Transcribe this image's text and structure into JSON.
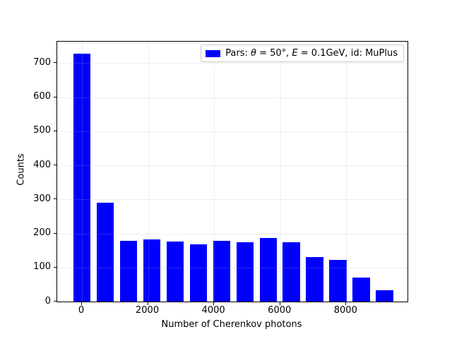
{
  "chart_data": {
    "type": "bar",
    "title": "",
    "xlabel": "Number of Cherenkov photons",
    "ylabel": "Counts",
    "bin_centers": [
      0,
      705,
      1410,
      2115,
      2820,
      3525,
      4230,
      4935,
      5640,
      6345,
      7050,
      7755,
      8460,
      9165
    ],
    "values": [
      727,
      291,
      179,
      182,
      177,
      167,
      179,
      174,
      187,
      175,
      130,
      122,
      71,
      34
    ],
    "bar_width_units": 529,
    "xlim": [
      -748,
      9853
    ],
    "ylim": [
      0,
      763
    ],
    "xticks": [
      0,
      2000,
      4000,
      6000,
      8000
    ],
    "yticks": [
      0,
      100,
      200,
      300,
      400,
      500,
      600,
      700
    ],
    "grid": true,
    "legend_position": "upper right",
    "colors": {
      "bar": "#0000ff",
      "grid": "rgba(176,176,176,0.22)",
      "spine": "#000000",
      "text": "#000000",
      "legend_border": "#c9c9c9"
    },
    "legend": {
      "swatch_color": "#0000ff",
      "label_plain": "Pars: θ = 50°, E = 0.1GeV, id: MuPlus",
      "label_parts": [
        {
          "text": "Pars: ",
          "italic": false
        },
        {
          "text": "θ",
          "italic": true
        },
        {
          "text": " = 50°, ",
          "italic": false
        },
        {
          "text": "E",
          "italic": true
        },
        {
          "text": " = 0.1GeV, id: MuPlus",
          "italic": false
        }
      ]
    }
  }
}
